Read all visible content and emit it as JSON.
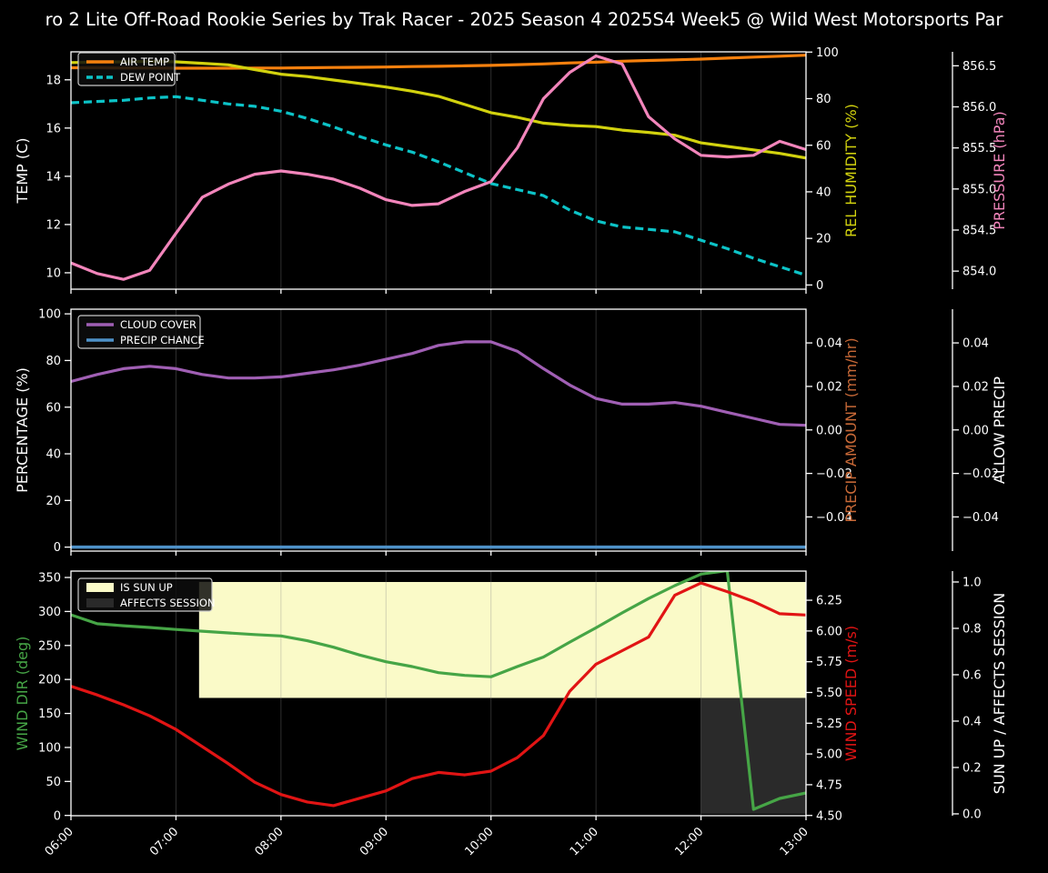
{
  "title": "ro 2 Lite Off-Road Rookie Series by Trak Racer - 2025 Season 4 2025S4 Week5 @ Wild West Motorsports Par",
  "colors": {
    "background": "#000000",
    "text": "#ffffff",
    "spine": "#ffffff",
    "grid": "#888888",
    "legend_bg": "#0d0d0d",
    "legend_border": "#c8c8c8",
    "air_temp": "#f5800e",
    "dew_point": "#0cc3c7",
    "humidity": "#d2d20e",
    "pressure": "#f285bb",
    "cloud_cover": "#a05fb4",
    "precip_chance": "#4e91c8",
    "precip_amount_label": "#c86937",
    "wind_dir": "#46a546",
    "wind_speed": "#e11414",
    "sun_up_fill": "#fafac8",
    "affects_fill": "#2a2a2a"
  },
  "x_axis": {
    "hours": [
      6,
      7,
      8,
      9,
      10,
      11,
      12,
      13
    ],
    "tick_labels": [
      "06:00",
      "07:00",
      "08:00",
      "09:00",
      "10:00",
      "11:00",
      "12:00",
      "13:00"
    ]
  },
  "chart_data": [
    {
      "id": "temperature-panel",
      "type": "line",
      "x": [
        6,
        6.25,
        6.5,
        6.75,
        7,
        7.25,
        7.5,
        7.75,
        8,
        8.25,
        8.5,
        8.75,
        9,
        9.25,
        9.5,
        9.75,
        10,
        10.25,
        10.5,
        10.75,
        11,
        11.25,
        11.5,
        11.75,
        12,
        12.25,
        12.5,
        12.75,
        13
      ],
      "axes": {
        "left": {
          "label": "TEMP (C)",
          "color": "#ffffff",
          "range": [
            9.32,
            19.16
          ],
          "ticks": [
            10,
            12,
            14,
            16,
            18
          ],
          "tick_labels": [
            "10",
            "12",
            "14",
            "16",
            "18"
          ]
        },
        "right1": {
          "label": "REL HUMIDITY (%)",
          "color": "#d2d20e",
          "range": [
            -1.8,
            100.1
          ],
          "ticks": [
            0,
            20,
            40,
            60,
            80,
            100
          ],
          "tick_labels": [
            "0",
            "20",
            "40",
            "60",
            "80",
            "100"
          ]
        },
        "right2": {
          "label": "PRESSURE (hPa)",
          "color": "#f285bb",
          "range": [
            853.78,
            856.67
          ],
          "ticks": [
            854.0,
            854.5,
            855.0,
            855.5,
            856.0,
            856.5
          ],
          "tick_labels": [
            "854.0",
            "854.5",
            "855.0",
            "855.5",
            "856.0",
            "856.5"
          ]
        }
      },
      "series": [
        {
          "name": "AIR TEMP",
          "axis": "left",
          "color": "#f5800e",
          "dash": null,
          "width": 3.2,
          "values": [
            18.5,
            18.5,
            18.49,
            18.49,
            18.48,
            18.48,
            18.48,
            18.49,
            18.49,
            18.5,
            18.51,
            18.52,
            18.53,
            18.55,
            18.56,
            18.58,
            18.6,
            18.63,
            18.66,
            18.7,
            18.73,
            18.77,
            18.8,
            18.83,
            18.86,
            18.9,
            18.94,
            18.98,
            19.02
          ]
        },
        {
          "name": "DEW POINT",
          "axis": "left",
          "color": "#0cc3c7",
          "dash": [
            9,
            5
          ],
          "width": 3.2,
          "values": [
            17.05,
            17.1,
            17.15,
            17.25,
            17.3,
            17.15,
            17.0,
            16.9,
            16.7,
            16.4,
            16.05,
            15.65,
            15.3,
            15.0,
            14.6,
            14.15,
            13.7,
            13.45,
            13.2,
            12.6,
            12.15,
            11.9,
            11.8,
            11.7,
            11.35,
            11.0,
            10.6,
            10.25,
            9.9
          ]
        },
        {
          "name": "REL HUMIDITY",
          "axis": "right1",
          "color": "#d2d20e",
          "dash": null,
          "width": 3.2,
          "values": [
            95.5,
            95.7,
            95.8,
            96,
            95.8,
            95.2,
            94.5,
            92.5,
            90.5,
            89.5,
            88,
            86.5,
            85,
            83.2,
            81,
            77.5,
            74,
            72,
            69.5,
            68.5,
            68,
            66.5,
            65.5,
            64.3,
            61,
            59.5,
            58,
            56.5,
            54.5
          ]
        },
        {
          "name": "PRESSURE",
          "axis": "right2",
          "color": "#f285bb",
          "dash": null,
          "width": 3.2,
          "values": [
            854.1,
            853.97,
            853.9,
            854.01,
            854.46,
            854.9,
            855.06,
            855.18,
            855.22,
            855.18,
            855.12,
            855.01,
            854.87,
            854.8,
            854.82,
            854.97,
            855.09,
            855.5,
            856.1,
            856.42,
            856.62,
            856.52,
            855.88,
            855.61,
            855.41,
            855.39,
            855.41,
            855.58,
            855.48
          ]
        }
      ],
      "regions": [],
      "legend": [
        {
          "label": "AIR TEMP",
          "swatch": "line",
          "color": "#f5800e",
          "dash": null
        },
        {
          "label": "DEW POINT",
          "swatch": "line",
          "color": "#0cc3c7",
          "dash": [
            7,
            4
          ]
        }
      ]
    },
    {
      "id": "precipitation-panel",
      "type": "line",
      "x": [
        6,
        6.25,
        6.5,
        6.75,
        7,
        7.25,
        7.5,
        7.75,
        8,
        8.25,
        8.5,
        8.75,
        9,
        9.25,
        9.5,
        9.75,
        10,
        10.25,
        10.5,
        10.75,
        11,
        11.25,
        11.5,
        11.75,
        12,
        12.25,
        12.5,
        12.75,
        13
      ],
      "axes": {
        "left": {
          "label": "PERCENTAGE (%)",
          "color": "#ffffff",
          "range": [
            -1.7,
            102
          ],
          "ticks": [
            0,
            20,
            40,
            60,
            80,
            100
          ],
          "tick_labels": [
            "0",
            "20",
            "40",
            "60",
            "80",
            "100"
          ]
        },
        "right1": {
          "label": "PRECIP AMOUNT (mm/hr)",
          "color": "#c86937",
          "range": [
            -0.0557,
            0.0555
          ],
          "ticks": [
            -0.04,
            -0.02,
            0,
            0.02,
            0.04
          ],
          "tick_labels": [
            "−0.04",
            "−0.02",
            "0.00",
            "0.02",
            "0.04"
          ]
        },
        "right2": {
          "label": "ALLOW PRECIP",
          "color": "#ffffff",
          "range": [
            -0.0557,
            0.0555
          ],
          "ticks": [
            -0.04,
            -0.02,
            0,
            0.02,
            0.04
          ],
          "tick_labels": [
            "−0.04",
            "−0.02",
            "0.00",
            "0.02",
            "0.04"
          ]
        }
      },
      "series": [
        {
          "name": "CLOUD COVER",
          "axis": "left",
          "color": "#a05fb4",
          "dash": null,
          "width": 3.2,
          "values": [
            71,
            74,
            76.5,
            77.5,
            76.5,
            74,
            72.5,
            72.5,
            73,
            74.5,
            76,
            78,
            80.5,
            83,
            86.5,
            88,
            88,
            84,
            76.5,
            69.5,
            63.7,
            61.3,
            61.3,
            62,
            60.4,
            57.8,
            55.2,
            52.6,
            52.2
          ]
        },
        {
          "name": "PRECIP CHANCE",
          "axis": "left",
          "color": "#4e91c8",
          "dash": null,
          "width": 3.5,
          "values": [
            0,
            0,
            0,
            0,
            0,
            0,
            0,
            0,
            0,
            0,
            0,
            0,
            0,
            0,
            0,
            0,
            0,
            0,
            0,
            0,
            0,
            0,
            0,
            0,
            0,
            0,
            0,
            0,
            0
          ]
        }
      ],
      "regions": [],
      "legend": [
        {
          "label": "CLOUD COVER",
          "swatch": "line",
          "color": "#a05fb4",
          "dash": null
        },
        {
          "label": "PRECIP CHANCE",
          "swatch": "line",
          "color": "#4e91c8",
          "dash": null
        }
      ]
    },
    {
      "id": "wind-panel",
      "type": "line",
      "x": [
        6,
        6.25,
        6.5,
        6.75,
        7,
        7.25,
        7.5,
        7.75,
        8,
        8.25,
        8.5,
        8.75,
        9,
        9.25,
        9.5,
        9.75,
        10,
        10.25,
        10.5,
        10.75,
        11,
        11.25,
        11.5,
        11.75,
        12,
        12.25,
        12.5,
        12.75,
        13
      ],
      "axes": {
        "left": {
          "label": "WIND DIR (deg)",
          "color": "#46a546",
          "range": [
            -0.4,
            359.4
          ],
          "ticks": [
            0,
            50,
            100,
            150,
            200,
            250,
            300,
            350
          ],
          "tick_labels": [
            "0",
            "50",
            "100",
            "150",
            "200",
            "250",
            "300",
            "350"
          ]
        },
        "right1": {
          "label": "WIND SPEED (m/s)",
          "color": "#e11414",
          "range": [
            4.498,
            6.487
          ],
          "ticks": [
            4.5,
            4.75,
            5.0,
            5.25,
            5.5,
            5.75,
            6.0,
            6.25
          ],
          "tick_labels": [
            "4.50",
            "4.75",
            "5.00",
            "5.25",
            "5.50",
            "5.75",
            "6.00",
            "6.25"
          ]
        },
        "right2": {
          "label": "SUN UP / AFFECTS SESSION",
          "color": "#ffffff",
          "range": [
            -0.008,
            1.047
          ],
          "ticks": [
            0,
            0.2,
            0.4,
            0.6,
            0.8,
            1.0
          ],
          "tick_labels": [
            "0.0",
            "0.2",
            "0.4",
            "0.6",
            "0.8",
            "1.0"
          ]
        }
      },
      "series": [
        {
          "name": "WIND DIR",
          "axis": "left",
          "color": "#46a546",
          "dash": null,
          "width": 3.2,
          "values": [
            295,
            282,
            279,
            276.5,
            273.5,
            271,
            268.5,
            266,
            264,
            257,
            247.5,
            236,
            226,
            219,
            210,
            206,
            204,
            219,
            233,
            255,
            276,
            298,
            319,
            338,
            355,
            360,
            9,
            25,
            33
          ]
        },
        {
          "name": "WIND SPEED",
          "axis": "right1",
          "color": "#e11414",
          "dash": null,
          "width": 3.2,
          "values": [
            5.55,
            5.48,
            5.4,
            5.31,
            5.2,
            5.06,
            4.92,
            4.77,
            4.67,
            4.61,
            4.58,
            4.64,
            4.7,
            4.8,
            4.85,
            4.83,
            4.86,
            4.97,
            5.15,
            5.51,
            5.73,
            5.84,
            5.95,
            6.29,
            6.39,
            6.32,
            6.24,
            6.14,
            6.13
          ]
        }
      ],
      "regions": [
        {
          "name": "IS SUN UP",
          "axis": "right2",
          "x0": 7.22,
          "x1": 13,
          "y0": 0.5,
          "y1": 1.0,
          "color": "#fafac8"
        },
        {
          "name": "AFFECTS SESSION",
          "axis": "right2",
          "x0": 12,
          "x1": 13,
          "y0": 0.0,
          "y1": 0.5,
          "color": "#2a2a2a"
        }
      ],
      "legend": [
        {
          "label": "IS SUN UP",
          "swatch": "patch",
          "color": "#fafac8"
        },
        {
          "label": "AFFECTS SESSION",
          "swatch": "patch",
          "color": "#2a2a2a"
        }
      ]
    }
  ]
}
